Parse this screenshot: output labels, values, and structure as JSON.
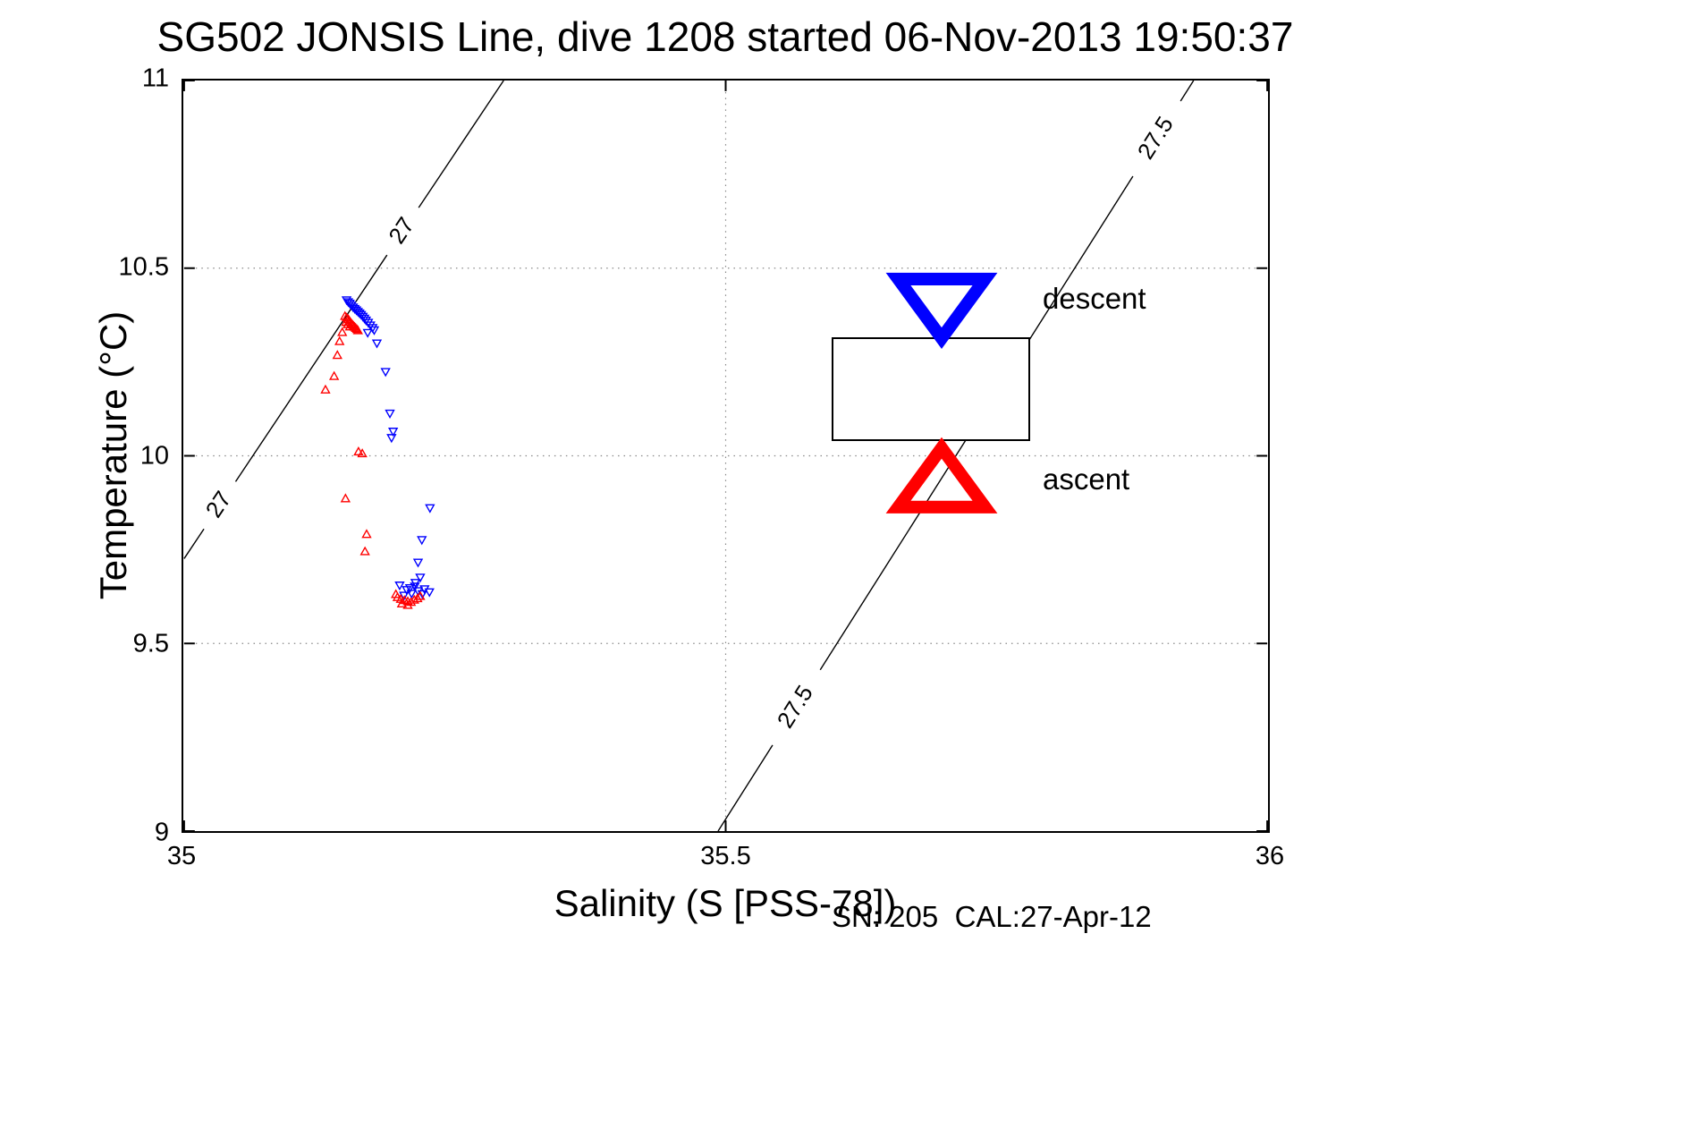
{
  "chart_data": {
    "type": "scatter",
    "title": "SG502 JONSIS Line, dive 1208 started 06-Nov-2013 19:50:37",
    "xlabel": "Salinity (S [PSS-78])",
    "ylabel": "Temperature (°C)",
    "annotation": "SN: 205  CAL:27-Apr-12",
    "xlim": [
      35,
      36
    ],
    "ylim": [
      9,
      11
    ],
    "xticks": [
      35,
      35.5,
      36
    ],
    "xtick_labels": [
      "35",
      "35.5",
      "36"
    ],
    "yticks": [
      9,
      9.5,
      10,
      10.5,
      11
    ],
    "ytick_labels": [
      "9",
      "9.5",
      "10",
      "10.5",
      "11"
    ],
    "grid": true,
    "grid_style": "dotted",
    "legend": {
      "position": "inside-upper-right",
      "items": [
        {
          "label": "descent",
          "color": "#0000ff",
          "marker": "triangle-down"
        },
        {
          "label": "ascent",
          "color": "#ff0000",
          "marker": "triangle-up"
        }
      ]
    },
    "contours": [
      {
        "label": "27",
        "start": [
          35.0,
          9.726
        ],
        "end": [
          35.295,
          11.0
        ],
        "label_points": [
          [
            35.033,
            9.868
          ],
          [
            35.202,
            10.598
          ]
        ]
      },
      {
        "label": "27.5",
        "start": [
          35.493,
          9.0
        ],
        "end": [
          35.932,
          11.0
        ],
        "label_points": [
          [
            35.565,
            9.33
          ],
          [
            35.898,
            10.845
          ]
        ]
      }
    ],
    "series": [
      {
        "name": "descent",
        "marker": "triangle-down",
        "color": "#0000ff",
        "points": [
          [
            35.15,
            10.415
          ],
          [
            35.1515,
            10.41
          ],
          [
            35.153,
            10.406
          ],
          [
            35.1545,
            10.401
          ],
          [
            35.156,
            10.396
          ],
          [
            35.1575,
            10.392
          ],
          [
            35.159,
            10.388
          ],
          [
            35.1605,
            10.384
          ],
          [
            35.162,
            10.38
          ],
          [
            35.1635,
            10.376
          ],
          [
            35.165,
            10.371
          ],
          [
            35.1665,
            10.366
          ],
          [
            35.168,
            10.361
          ],
          [
            35.17,
            10.355
          ],
          [
            35.172,
            10.348
          ],
          [
            35.174,
            10.341
          ],
          [
            35.1755,
            10.335
          ],
          [
            35.1695,
            10.328
          ],
          [
            35.178,
            10.3
          ],
          [
            35.186,
            10.224
          ],
          [
            35.19,
            10.113
          ],
          [
            35.1915,
            10.048
          ],
          [
            35.193,
            10.065
          ],
          [
            35.227,
            9.861
          ],
          [
            35.2195,
            9.776
          ],
          [
            35.216,
            9.716
          ],
          [
            35.218,
            9.676
          ],
          [
            35.213,
            9.652
          ],
          [
            35.2055,
            9.643
          ],
          [
            35.199,
            9.655
          ],
          [
            35.21,
            9.633
          ],
          [
            35.216,
            9.64
          ],
          [
            35.222,
            9.645
          ],
          [
            35.2265,
            9.637
          ],
          [
            35.203,
            9.628
          ],
          [
            35.2085,
            9.648
          ],
          [
            35.22,
            9.632
          ],
          [
            35.2135,
            9.662
          ]
        ]
      },
      {
        "name": "ascent",
        "marker": "triangle-up",
        "color": "#ff0000",
        "points": [
          [
            35.1485,
            10.372
          ],
          [
            35.15,
            10.368
          ],
          [
            35.1515,
            10.364
          ],
          [
            35.1525,
            10.36
          ],
          [
            35.1535,
            10.356
          ],
          [
            35.1545,
            10.352
          ],
          [
            35.1555,
            10.349
          ],
          [
            35.1565,
            10.346
          ],
          [
            35.1575,
            10.343
          ],
          [
            35.1585,
            10.34
          ],
          [
            35.1595,
            10.337
          ],
          [
            35.1605,
            10.334
          ],
          [
            35.1495,
            10.356
          ],
          [
            35.151,
            10.35
          ],
          [
            35.153,
            10.344
          ],
          [
            35.146,
            10.329
          ],
          [
            35.1435,
            10.305
          ],
          [
            35.1415,
            10.268
          ],
          [
            35.1385,
            10.212
          ],
          [
            35.1305,
            10.176
          ],
          [
            35.161,
            10.011
          ],
          [
            35.1645,
            10.006
          ],
          [
            35.149,
            9.886
          ],
          [
            35.1685,
            9.791
          ],
          [
            35.167,
            9.745
          ],
          [
            35.197,
            9.623
          ],
          [
            35.2,
            9.618
          ],
          [
            35.2035,
            9.615
          ],
          [
            35.2065,
            9.612
          ],
          [
            35.2095,
            9.61
          ],
          [
            35.2125,
            9.616
          ],
          [
            35.2155,
            9.62
          ],
          [
            35.1955,
            9.631
          ],
          [
            35.218,
            9.626
          ],
          [
            35.2065,
            9.602
          ],
          [
            35.201,
            9.606
          ]
        ]
      }
    ]
  }
}
